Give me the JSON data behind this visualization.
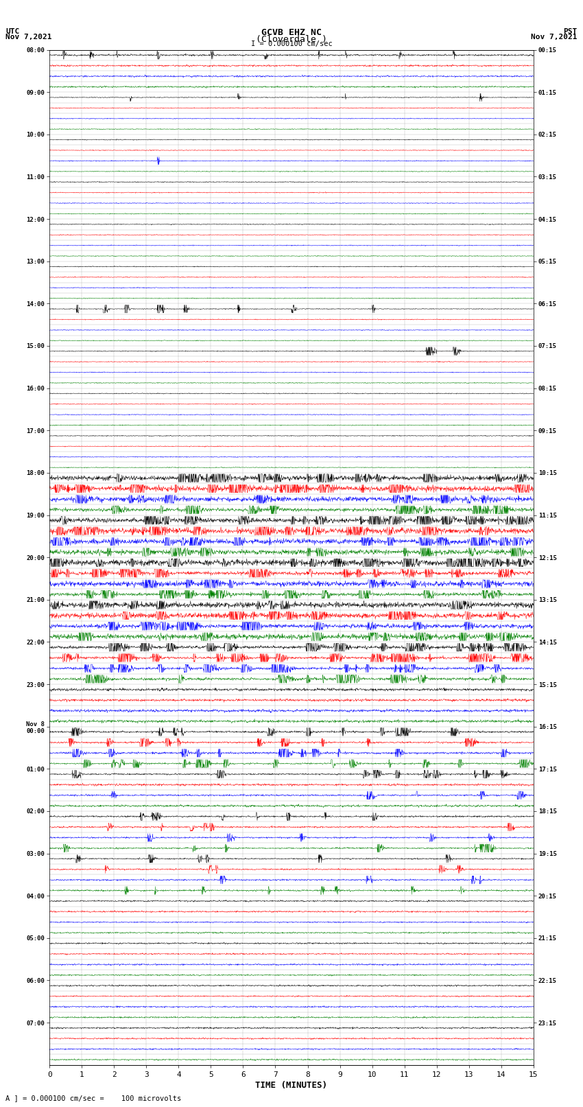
{
  "title_line1": "GCVB EHZ NC",
  "title_line2": "(Cloverdale )",
  "scale_label": "I = 0.000100 cm/sec",
  "left_label_top": "UTC",
  "left_label_bot": "Nov 7,2021",
  "right_label_top": "PST",
  "right_label_bot": "Nov 7,2021",
  "xlabel": "TIME (MINUTES)",
  "footer": "A ] = 0.000100 cm/sec =    100 microvolts",
  "utc_times": [
    "08:00",
    "",
    "",
    "",
    "09:00",
    "",
    "",
    "",
    "10:00",
    "",
    "",
    "",
    "11:00",
    "",
    "",
    "",
    "12:00",
    "",
    "",
    "",
    "13:00",
    "",
    "",
    "",
    "14:00",
    "",
    "",
    "",
    "15:00",
    "",
    "",
    "",
    "16:00",
    "",
    "",
    "",
    "17:00",
    "",
    "",
    "",
    "18:00",
    "",
    "",
    "",
    "19:00",
    "",
    "",
    "",
    "20:00",
    "",
    "",
    "",
    "21:00",
    "",
    "",
    "",
    "22:00",
    "",
    "",
    "",
    "23:00",
    "",
    "",
    "",
    "Nov 8\n00:00",
    "",
    "",
    "",
    "01:00",
    "",
    "",
    "",
    "02:00",
    "",
    "",
    "",
    "03:00",
    "",
    "",
    "",
    "04:00",
    "",
    "",
    "",
    "05:00",
    "",
    "",
    "",
    "06:00",
    "",
    "",
    "",
    "07:00",
    "",
    "",
    ""
  ],
  "pst_times": [
    "00:15",
    "",
    "",
    "",
    "01:15",
    "",
    "",
    "",
    "02:15",
    "",
    "",
    "",
    "03:15",
    "",
    "",
    "",
    "04:15",
    "",
    "",
    "",
    "05:15",
    "",
    "",
    "",
    "06:15",
    "",
    "",
    "",
    "07:15",
    "",
    "",
    "",
    "08:15",
    "",
    "",
    "",
    "09:15",
    "",
    "",
    "",
    "10:15",
    "",
    "",
    "",
    "11:15",
    "",
    "",
    "",
    "12:15",
    "",
    "",
    "",
    "13:15",
    "",
    "",
    "",
    "14:15",
    "",
    "",
    "",
    "15:15",
    "",
    "",
    "",
    "16:15",
    "",
    "",
    "",
    "17:15",
    "",
    "",
    "",
    "18:15",
    "",
    "",
    "",
    "19:15",
    "",
    "",
    "",
    "20:15",
    "",
    "",
    "",
    "21:15",
    "",
    "",
    "",
    "22:15",
    "",
    "",
    "",
    "23:15",
    "",
    "",
    ""
  ],
  "colors": [
    "black",
    "red",
    "blue",
    "green"
  ],
  "n_rows": 96,
  "n_minutes": 15,
  "samples_per_row": 1800,
  "background_color": "white",
  "grid_color": "#aaaaaa",
  "font_family": "monospace",
  "row_amplitude": 0.38,
  "base_noise": 0.018
}
